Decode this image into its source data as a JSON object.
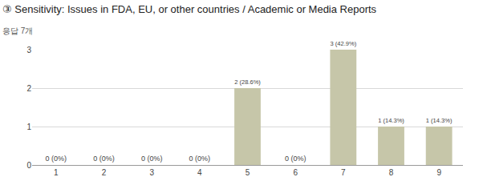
{
  "chart_data": {
    "type": "bar",
    "title": "③ Sensitivity: Issues in FDA, EU, or other countries / Academic or Media Reports",
    "subtitle": "응답 7개",
    "categories": [
      "1",
      "2",
      "3",
      "4",
      "5",
      "6",
      "7",
      "8",
      "9"
    ],
    "values": [
      0,
      0,
      0,
      0,
      2,
      0,
      3,
      1,
      1
    ],
    "value_labels": [
      "0 (0%)",
      "0 (0%)",
      "0 (0%)",
      "0 (0%)",
      "2 (28.6%)",
      "0 (0%)",
      "3 (42.9%)",
      "1 (14.3%)",
      "1 (14.3%)"
    ],
    "data_labels": true,
    "color": "#c6c6a9",
    "ylim": [
      0,
      3
    ],
    "yticks": [
      0,
      1,
      2,
      3
    ],
    "grid": true
  }
}
